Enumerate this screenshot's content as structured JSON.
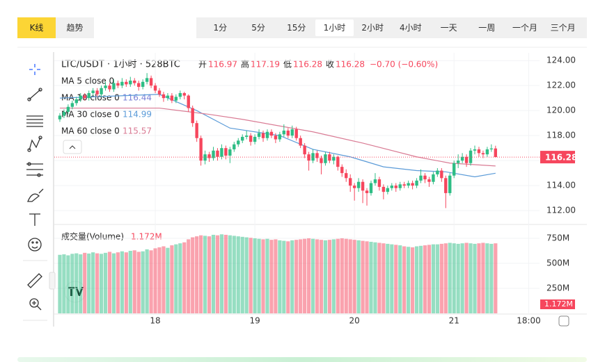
{
  "toolbar": {
    "tabs": [
      "K线",
      "趋势"
    ],
    "active_tab": 0,
    "intervals": [
      "1分",
      "5分",
      "15分",
      "1小时",
      "2小时",
      "4小时",
      "一天",
      "一周",
      "一个月",
      "三个月"
    ],
    "active_interval": 3
  },
  "header": {
    "symbol": "LTC/USDT · 1小时 · 528BTC",
    "stats": [
      {
        "label": "开",
        "value": 116.97
      },
      {
        "label": "高",
        "value": 117.19
      },
      {
        "label": "低",
        "value": 116.28
      },
      {
        "label": "收",
        "value": 116.28
      }
    ],
    "change": "−0.70 (−0.60%)"
  },
  "chart_data": {
    "type": "candlestick",
    "xlim": [
      -24,
      92.6
    ],
    "xticks": [
      {
        "value": 0,
        "label": "18"
      },
      {
        "value": 24,
        "label": "19"
      },
      {
        "value": 48,
        "label": "20"
      },
      {
        "value": 72,
        "label": "21"
      },
      {
        "value": 90,
        "label": "18:00"
      }
    ],
    "x": [
      -23,
      -22,
      -21,
      -20,
      -19,
      -18,
      -17,
      -16,
      -15,
      -14,
      -13,
      -12,
      -11,
      -10,
      -9,
      -8,
      -7,
      -6,
      -5,
      -4,
      -3,
      -2,
      -1,
      0,
      1,
      2,
      3,
      4,
      5,
      6,
      7,
      8,
      9,
      10,
      11,
      12,
      13,
      14,
      15,
      16,
      17,
      18,
      19,
      20,
      21,
      22,
      23,
      24,
      25,
      26,
      27,
      28,
      29,
      30,
      31,
      32,
      33,
      34,
      35,
      36,
      37,
      38,
      39,
      40,
      41,
      42,
      43,
      44,
      45,
      46,
      47,
      48,
      49,
      50,
      51,
      52,
      53,
      54,
      55,
      56,
      57,
      58,
      59,
      60,
      61,
      62,
      63,
      64,
      65,
      66,
      67,
      68,
      69,
      70,
      71,
      72,
      73,
      74,
      75,
      76,
      77,
      78,
      79,
      80,
      81,
      82
    ],
    "ohlc": [
      [
        119.3,
        119.8,
        119.1,
        119.6
      ],
      [
        119.6,
        120.1,
        119.4,
        119.9
      ],
      [
        119.9,
        120.5,
        119.7,
        120.3
      ],
      [
        120.3,
        120.8,
        120.1,
        120.6
      ],
      [
        120.6,
        121.1,
        120.4,
        120.9
      ],
      [
        120.9,
        121.4,
        120.7,
        121.2
      ],
      [
        121.2,
        121.4,
        120.8,
        121.0
      ],
      [
        121.0,
        121.6,
        120.8,
        121.4
      ],
      [
        121.4,
        121.8,
        121.2,
        121.6
      ],
      [
        121.6,
        121.8,
        121.1,
        121.3
      ],
      [
        121.3,
        122.0,
        121.1,
        121.8
      ],
      [
        121.8,
        122.3,
        121.6,
        122.0
      ],
      [
        122.0,
        122.2,
        121.5,
        121.7
      ],
      [
        121.7,
        122.5,
        121.5,
        122.2
      ],
      [
        122.2,
        122.4,
        121.8,
        122.0
      ],
      [
        122.0,
        122.6,
        121.8,
        122.3
      ],
      [
        122.3,
        122.5,
        121.9,
        122.1
      ],
      [
        122.1,
        122.7,
        121.9,
        122.4
      ],
      [
        122.4,
        122.6,
        122.0,
        122.2
      ],
      [
        122.2,
        122.4,
        121.6,
        121.9
      ],
      [
        121.9,
        122.5,
        121.7,
        122.3
      ],
      [
        122.3,
        123.0,
        122.1,
        122.6
      ],
      [
        122.6,
        122.8,
        121.8,
        122.0
      ],
      [
        122.0,
        122.2,
        121.4,
        121.6
      ],
      [
        121.6,
        121.8,
        121.1,
        121.3
      ],
      [
        121.3,
        121.5,
        120.7,
        121.0
      ],
      [
        121.0,
        121.4,
        120.8,
        121.2
      ],
      [
        121.2,
        121.4,
        120.6,
        120.8
      ],
      [
        120.8,
        121.3,
        120.6,
        121.1
      ],
      [
        121.1,
        121.6,
        120.9,
        121.4
      ],
      [
        121.4,
        121.5,
        120.9,
        121.2
      ],
      [
        121.2,
        121.3,
        119.9,
        120.2
      ],
      [
        120.2,
        120.4,
        118.7,
        119.0
      ],
      [
        119.0,
        119.2,
        117.5,
        117.8
      ],
      [
        117.8,
        118.0,
        115.6,
        116.0
      ],
      [
        116.0,
        116.8,
        115.7,
        116.5
      ],
      [
        116.5,
        116.7,
        115.9,
        116.2
      ],
      [
        116.2,
        117.1,
        116.0,
        116.8
      ],
      [
        116.8,
        117.0,
        116.0,
        116.3
      ],
      [
        116.3,
        117.3,
        116.1,
        117.0
      ],
      [
        117.0,
        117.2,
        116.1,
        116.4
      ],
      [
        116.4,
        117.1,
        115.8,
        116.9
      ],
      [
        116.9,
        117.5,
        116.7,
        117.3
      ],
      [
        117.3,
        117.8,
        117.1,
        117.6
      ],
      [
        117.6,
        118.1,
        117.4,
        117.9
      ],
      [
        117.9,
        118.4,
        117.7,
        118.0
      ],
      [
        118.0,
        118.2,
        117.2,
        117.5
      ],
      [
        117.5,
        118.1,
        117.3,
        117.9
      ],
      [
        117.9,
        118.5,
        117.7,
        118.2
      ],
      [
        118.2,
        118.4,
        117.5,
        117.8
      ],
      [
        117.8,
        118.5,
        117.6,
        118.3
      ],
      [
        118.3,
        118.5,
        117.8,
        118.0
      ],
      [
        118.0,
        118.2,
        117.4,
        117.7
      ],
      [
        117.7,
        118.3,
        117.5,
        118.1
      ],
      [
        118.1,
        118.9,
        117.9,
        118.4
      ],
      [
        118.4,
        118.6,
        117.8,
        118.0
      ],
      [
        118.0,
        118.8,
        117.8,
        118.5
      ],
      [
        118.5,
        118.7,
        117.6,
        117.8
      ],
      [
        117.8,
        118.0,
        117.0,
        117.2
      ],
      [
        117.2,
        117.4,
        116.2,
        116.5
      ],
      [
        116.5,
        116.7,
        115.2,
        116.0
      ],
      [
        116.0,
        116.9,
        115.8,
        116.6
      ],
      [
        116.6,
        116.8,
        115.9,
        116.2
      ],
      [
        116.2,
        116.4,
        114.9,
        115.8
      ],
      [
        115.8,
        116.7,
        115.6,
        116.5
      ],
      [
        116.5,
        116.7,
        115.8,
        116.0
      ],
      [
        116.0,
        116.5,
        115.7,
        116.3
      ],
      [
        116.3,
        116.4,
        115.2,
        115.5
      ],
      [
        115.5,
        115.7,
        114.7,
        115.0
      ],
      [
        115.0,
        115.3,
        114.3,
        114.6
      ],
      [
        114.6,
        114.9,
        113.5,
        114.0
      ],
      [
        114.0,
        114.2,
        112.8,
        113.8
      ],
      [
        113.8,
        114.6,
        113.5,
        114.3
      ],
      [
        114.3,
        114.5,
        112.6,
        113.6
      ],
      [
        113.6,
        113.8,
        112.4,
        113.4
      ],
      [
        113.4,
        114.4,
        113.2,
        114.2
      ],
      [
        114.2,
        115.0,
        114.0,
        114.5
      ],
      [
        114.5,
        114.7,
        113.6,
        113.9
      ],
      [
        113.9,
        114.1,
        112.9,
        113.5
      ],
      [
        113.5,
        114.0,
        113.3,
        113.8
      ],
      [
        113.8,
        114.2,
        113.6,
        114.0
      ],
      [
        114.0,
        114.2,
        113.5,
        113.8
      ],
      [
        113.8,
        114.3,
        113.6,
        114.1
      ],
      [
        114.1,
        114.3,
        113.8,
        114.0
      ],
      [
        114.0,
        114.4,
        113.8,
        114.2
      ],
      [
        114.2,
        114.4,
        113.7,
        114.0
      ],
      [
        114.0,
        114.6,
        113.8,
        114.4
      ],
      [
        114.4,
        115.3,
        114.2,
        114.8
      ],
      [
        114.8,
        115.0,
        114.2,
        114.5
      ],
      [
        114.5,
        114.7,
        113.9,
        114.3
      ],
      [
        114.3,
        115.1,
        114.1,
        114.9
      ],
      [
        114.9,
        115.4,
        114.7,
        115.2
      ],
      [
        115.2,
        115.4,
        114.3,
        114.6
      ],
      [
        114.6,
        114.8,
        112.2,
        113.4
      ],
      [
        113.4,
        115.0,
        113.2,
        114.8
      ],
      [
        114.8,
        116.0,
        114.6,
        115.8
      ],
      [
        115.8,
        116.5,
        115.4,
        116.0
      ],
      [
        116.0,
        116.6,
        115.8,
        116.3
      ],
      [
        116.3,
        116.5,
        115.5,
        115.8
      ],
      [
        115.8,
        117.0,
        115.6,
        116.8
      ],
      [
        116.8,
        117.2,
        116.5,
        116.9
      ],
      [
        116.9,
        117.1,
        116.3,
        116.6
      ],
      [
        116.6,
        116.8,
        116.2,
        116.5
      ],
      [
        116.5,
        117.1,
        116.3,
        116.9
      ],
      [
        116.9,
        117.3,
        116.7,
        116.97
      ],
      [
        116.97,
        117.19,
        116.28,
        116.28
      ]
    ],
    "up_color": "#2ebd85",
    "down_color": "#f6465d",
    "ylim": [
      110.95,
      124.4
    ],
    "yticks": [
      {
        "value": 112,
        "label": "112.00"
      },
      {
        "value": 114,
        "label": "114.00"
      },
      {
        "value": 116,
        "label": "116.00"
      },
      {
        "value": 118,
        "label": "118.00"
      },
      {
        "value": 120,
        "label": "120.00"
      },
      {
        "value": 122,
        "label": "122.00"
      },
      {
        "value": 124,
        "label": "124.00"
      }
    ],
    "grid": true,
    "last_price": 116.28,
    "ma": [
      {
        "name": "MA 5 close 0",
        "color": "#d9a54a"
      },
      {
        "name": "MA 10 close 0",
        "value": 116.44,
        "color": "#7a7fd6"
      },
      {
        "name": "MA 30 close 0",
        "value": 114.99,
        "color": "#5b9bd8",
        "x": [
          -23,
          1,
          10,
          18,
          30,
          38,
          47,
          55,
          63,
          70,
          77,
          82
        ],
        "values": [
          121.0,
          121.3,
          120.0,
          118.6,
          118.0,
          116.9,
          116.3,
          115.5,
          115.2,
          115.1,
          114.7,
          114.99
        ]
      },
      {
        "name": "MA 60 close 0",
        "value": 115.57,
        "color": "#d97b94",
        "x": [
          -23,
          1,
          13,
          21,
          38,
          50,
          63,
          71,
          82
        ],
        "values": [
          120.2,
          120.2,
          119.7,
          119.3,
          118.3,
          117.4,
          116.3,
          115.8,
          115.57
        ]
      }
    ],
    "volume": {
      "title": "成交量(Volume)",
      "current": "1.172M",
      "values": [
        585,
        590,
        580,
        595,
        600,
        590,
        605,
        598,
        610,
        600,
        595,
        605,
        615,
        600,
        610,
        620,
        610,
        625,
        630,
        615,
        620,
        640,
        630,
        650,
        660,
        670,
        655,
        680,
        690,
        700,
        710,
        740,
        760,
        770,
        780,
        775,
        770,
        785,
        780,
        790,
        785,
        780,
        775,
        770,
        765,
        760,
        755,
        750,
        745,
        740,
        745,
        735,
        740,
        730,
        725,
        720,
        730,
        735,
        740,
        745,
        750,
        745,
        740,
        735,
        730,
        735,
        740,
        745,
        750,
        745,
        740,
        735,
        730,
        725,
        720,
        715,
        710,
        705,
        700,
        695,
        690,
        685,
        680,
        670,
        665,
        660,
        670,
        675,
        680,
        685,
        690,
        690,
        695,
        700,
        705,
        700,
        695,
        700,
        705,
        700,
        695,
        700,
        705,
        700,
        695,
        700
      ],
      "ylim": [
        0,
        868
      ],
      "yticks": [
        {
          "value": 250,
          "label": "250M"
        },
        {
          "value": 500,
          "label": "500M"
        },
        {
          "value": 750,
          "label": "750M"
        }
      ]
    }
  }
}
